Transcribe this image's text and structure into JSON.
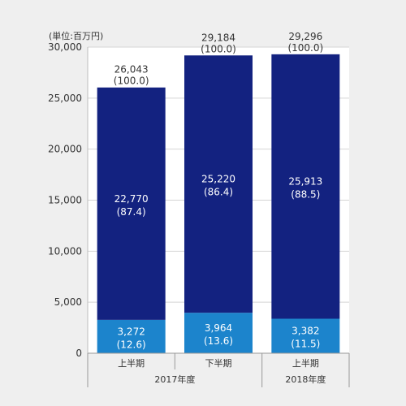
{
  "chart_data": {
    "type": "bar",
    "stacked": true,
    "unit_label": "(単位:百万円)",
    "categories": [
      "上半期",
      "下半期",
      "上半期"
    ],
    "groups": [
      {
        "label": "2017年度",
        "categories": [
          0,
          1
        ]
      },
      {
        "label": "2018年度",
        "categories": [
          2
        ]
      }
    ],
    "series": [
      {
        "values": [
          3272,
          3964,
          3382
        ],
        "labels": [
          "3,272",
          "3,964",
          "3,382"
        ],
        "percents": [
          "(12.6)",
          "(13.6)",
          "(11.5)"
        ],
        "color": "#1c84cc"
      },
      {
        "values": [
          22770,
          25220,
          25913
        ],
        "labels": [
          "22,770",
          "25,220",
          "25,913"
        ],
        "percents": [
          "(87.4)",
          "(86.4)",
          "(88.5)"
        ],
        "color": "#132280"
      }
    ],
    "totals": [
      "26,043",
      "29,184",
      "29,296"
    ],
    "total_percents": [
      "(100.0)",
      "(100.0)",
      "(100.0)"
    ],
    "ylim": [
      0,
      30000
    ],
    "yticks": [
      0,
      5000,
      10000,
      15000,
      20000,
      25000,
      30000
    ],
    "ytick_labels": [
      "0",
      "5,000",
      "10,000",
      "15,000",
      "20,000",
      "25,000",
      "30,000"
    ],
    "grid": true
  }
}
